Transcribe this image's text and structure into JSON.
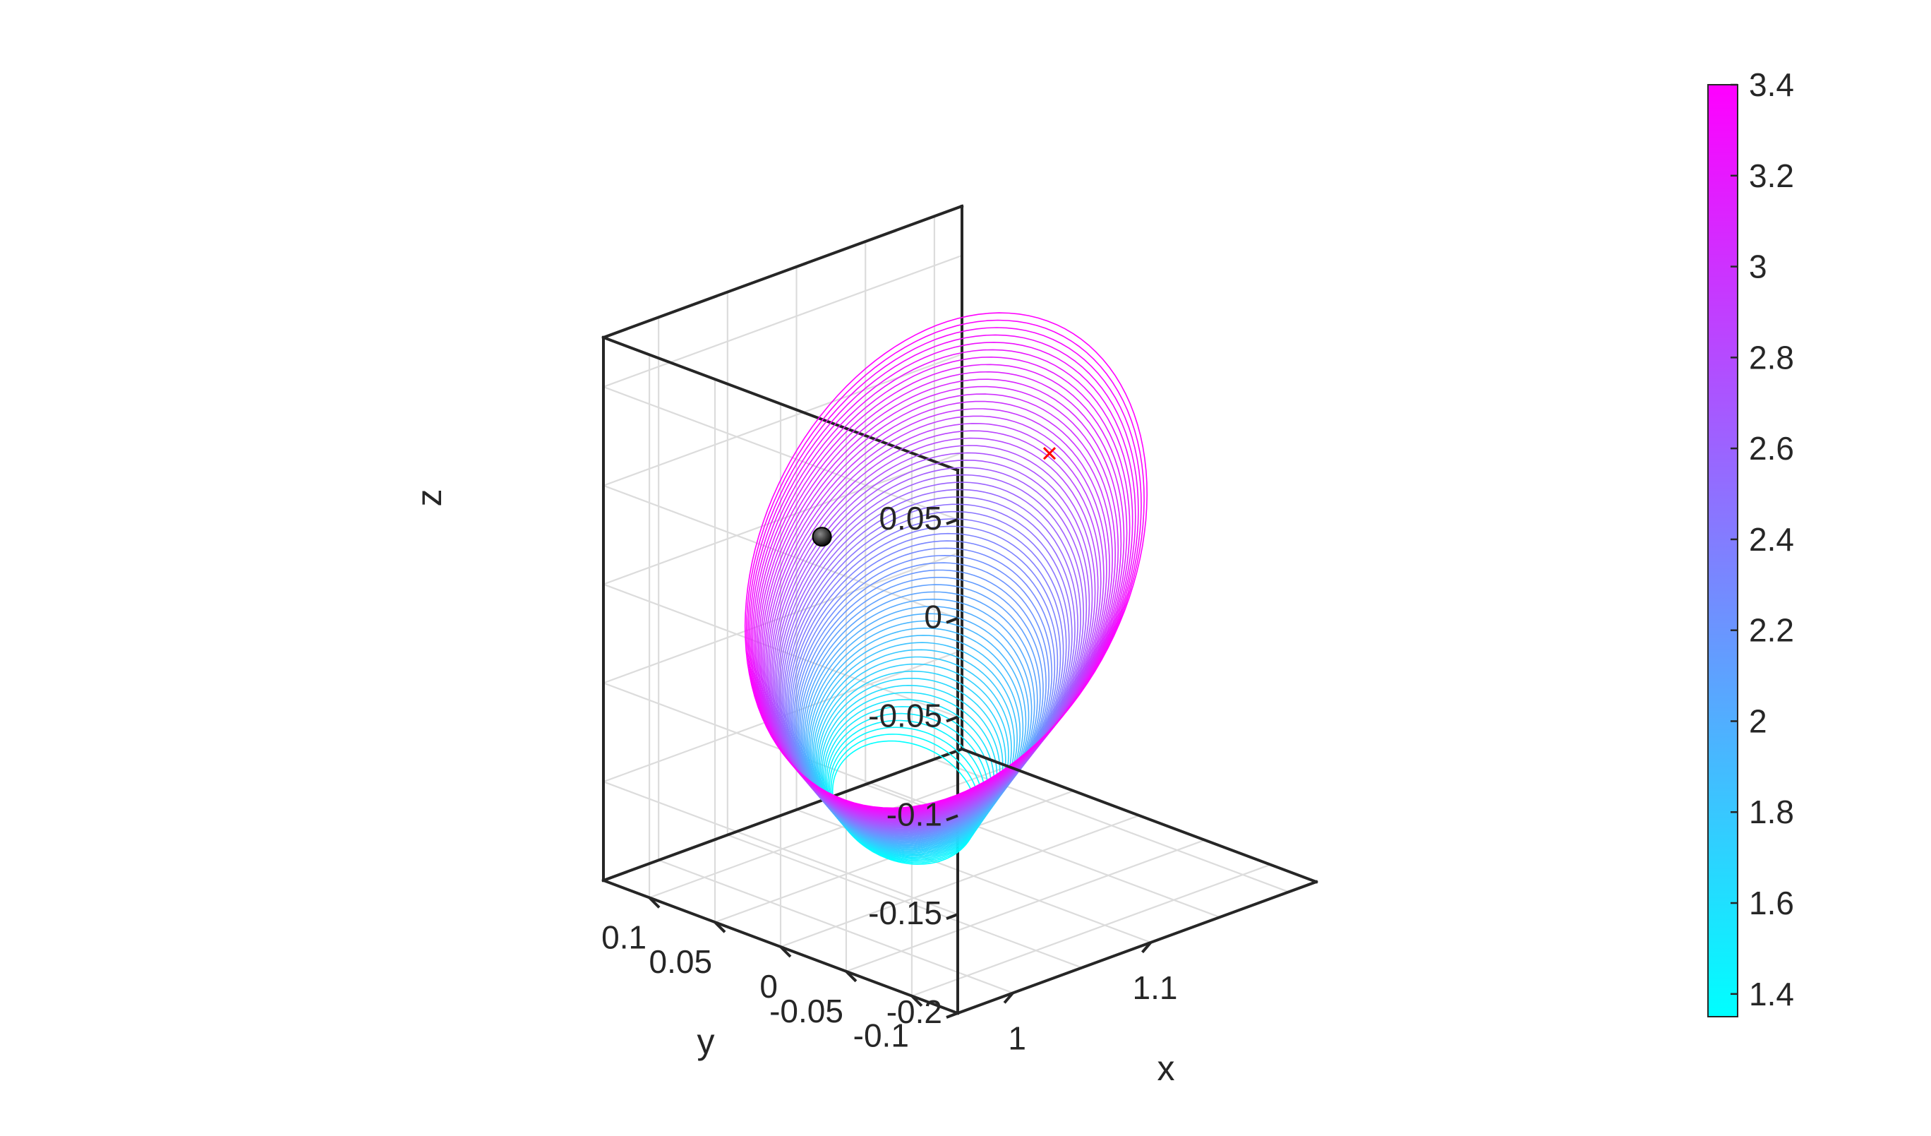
{
  "chart_data": {
    "type": "3d-line-family",
    "axes": {
      "xlabel": "x",
      "ylabel": "y",
      "zlabel": "z",
      "xlim": [
        0.96,
        1.22
      ],
      "ylim": [
        -0.135,
        0.135
      ],
      "zlim": [
        -0.2,
        0.075
      ],
      "x_ticks": [
        1,
        1.1
      ],
      "x_tick_labels": [
        "1",
        "1.1"
      ],
      "y_ticks": [
        0.1,
        0.05,
        0,
        -0.05,
        -0.1
      ],
      "y_tick_labels": [
        "0.1",
        "0.05",
        "0",
        "-0.05",
        "-0.1"
      ],
      "z_ticks": [
        0.05,
        0,
        -0.05,
        -0.1,
        -0.15,
        -0.2
      ],
      "z_tick_labels": [
        "0.05",
        "0",
        "-0.05",
        "-0.1",
        "-0.15",
        "-0.2"
      ],
      "grid": true,
      "box": true,
      "view": "3d default"
    },
    "orbit_family": {
      "count": 60,
      "color_param_range": [
        1.35,
        3.4
      ],
      "colormap": "cool (cyan to magenta)"
    },
    "markers": [
      {
        "name": "secondary-body",
        "shape": "sphere",
        "color": "#000000",
        "x": 0.99,
        "y": 0,
        "z": 0
      },
      {
        "name": "equilibrium-point",
        "shape": "x",
        "color": "#ff0000",
        "x": 1.155,
        "y": 0,
        "z": 0
      }
    ],
    "colorbar": {
      "min": 1.35,
      "max": 3.4,
      "ticks": [
        3.4,
        3.2,
        3,
        2.8,
        2.6,
        2.4,
        2.2,
        2,
        1.8,
        1.6,
        1.4
      ],
      "tick_labels": [
        "3.4",
        "3.2",
        "3",
        "2.8",
        "2.6",
        "2.4",
        "2.2",
        "2",
        "1.8",
        "1.6",
        "1.4"
      ],
      "color_low": "#00ffff",
      "color_high": "#ff00ff"
    }
  }
}
